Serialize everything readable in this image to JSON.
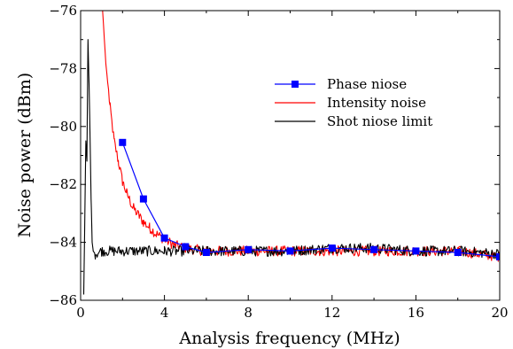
{
  "chart_data": {
    "type": "line",
    "xlabel": "Analysis frequency (MHz)",
    "ylabel": "Noise power (dBm)",
    "xlim": [
      0,
      20
    ],
    "ylim": [
      -86,
      -76
    ],
    "xticks": [
      0,
      4,
      8,
      12,
      16,
      20
    ],
    "yticks": [
      -86,
      -84,
      -82,
      -80,
      -78,
      -76
    ],
    "xtick_labels": [
      "0",
      "4",
      "8",
      "12",
      "16",
      "20"
    ],
    "ytick_labels": [
      "−86",
      "−84",
      "−82",
      "−80",
      "−78",
      "−76"
    ],
    "grid": false,
    "legend_position": "upper-right",
    "series": [
      {
        "name": "Phase niose",
        "color": "#0000ff",
        "marker": "square",
        "x": [
          2,
          3,
          4,
          5,
          6,
          8,
          10,
          12,
          14,
          16,
          18,
          20
        ],
        "y": [
          -80.55,
          -82.5,
          -83.85,
          -84.15,
          -84.35,
          -84.25,
          -84.3,
          -84.2,
          -84.25,
          -84.3,
          -84.35,
          -84.5
        ]
      },
      {
        "name": "Intensity noise",
        "color": "#ff0000",
        "x": [
          1.05,
          1.2,
          1.4,
          1.6,
          1.8,
          2.0,
          2.2,
          2.5,
          2.8,
          3.0,
          3.3,
          3.6,
          4.0,
          4.5,
          5.0,
          6.0,
          8.0,
          10.0,
          12.0,
          14.0,
          16.0,
          18.0,
          20.0
        ],
        "y": [
          -76.0,
          -77.8,
          -79.3,
          -80.5,
          -81.2,
          -81.9,
          -82.3,
          -82.8,
          -83.1,
          -83.3,
          -83.5,
          -83.7,
          -83.9,
          -84.1,
          -84.2,
          -84.3,
          -84.3,
          -84.3,
          -84.3,
          -84.3,
          -84.3,
          -84.3,
          -84.5
        ],
        "noise": 0.18
      },
      {
        "name": "Shot niose limit",
        "color": "#000000",
        "x": [
          0.15,
          0.25,
          0.3,
          0.35,
          0.4,
          0.45,
          0.5,
          0.55,
          0.6,
          0.7,
          1.0,
          2.0,
          4.0,
          6.0,
          8.0,
          10.0,
          12.0,
          14.0,
          16.0,
          18.0,
          20.0
        ],
        "y": [
          -85.8,
          -80.5,
          -81.2,
          -77.0,
          -78.5,
          -80.3,
          -82.5,
          -84.0,
          -84.3,
          -84.4,
          -84.3,
          -84.3,
          -84.3,
          -84.3,
          -84.3,
          -84.3,
          -84.2,
          -84.2,
          -84.3,
          -84.3,
          -84.4
        ],
        "noise": 0.18
      }
    ]
  }
}
